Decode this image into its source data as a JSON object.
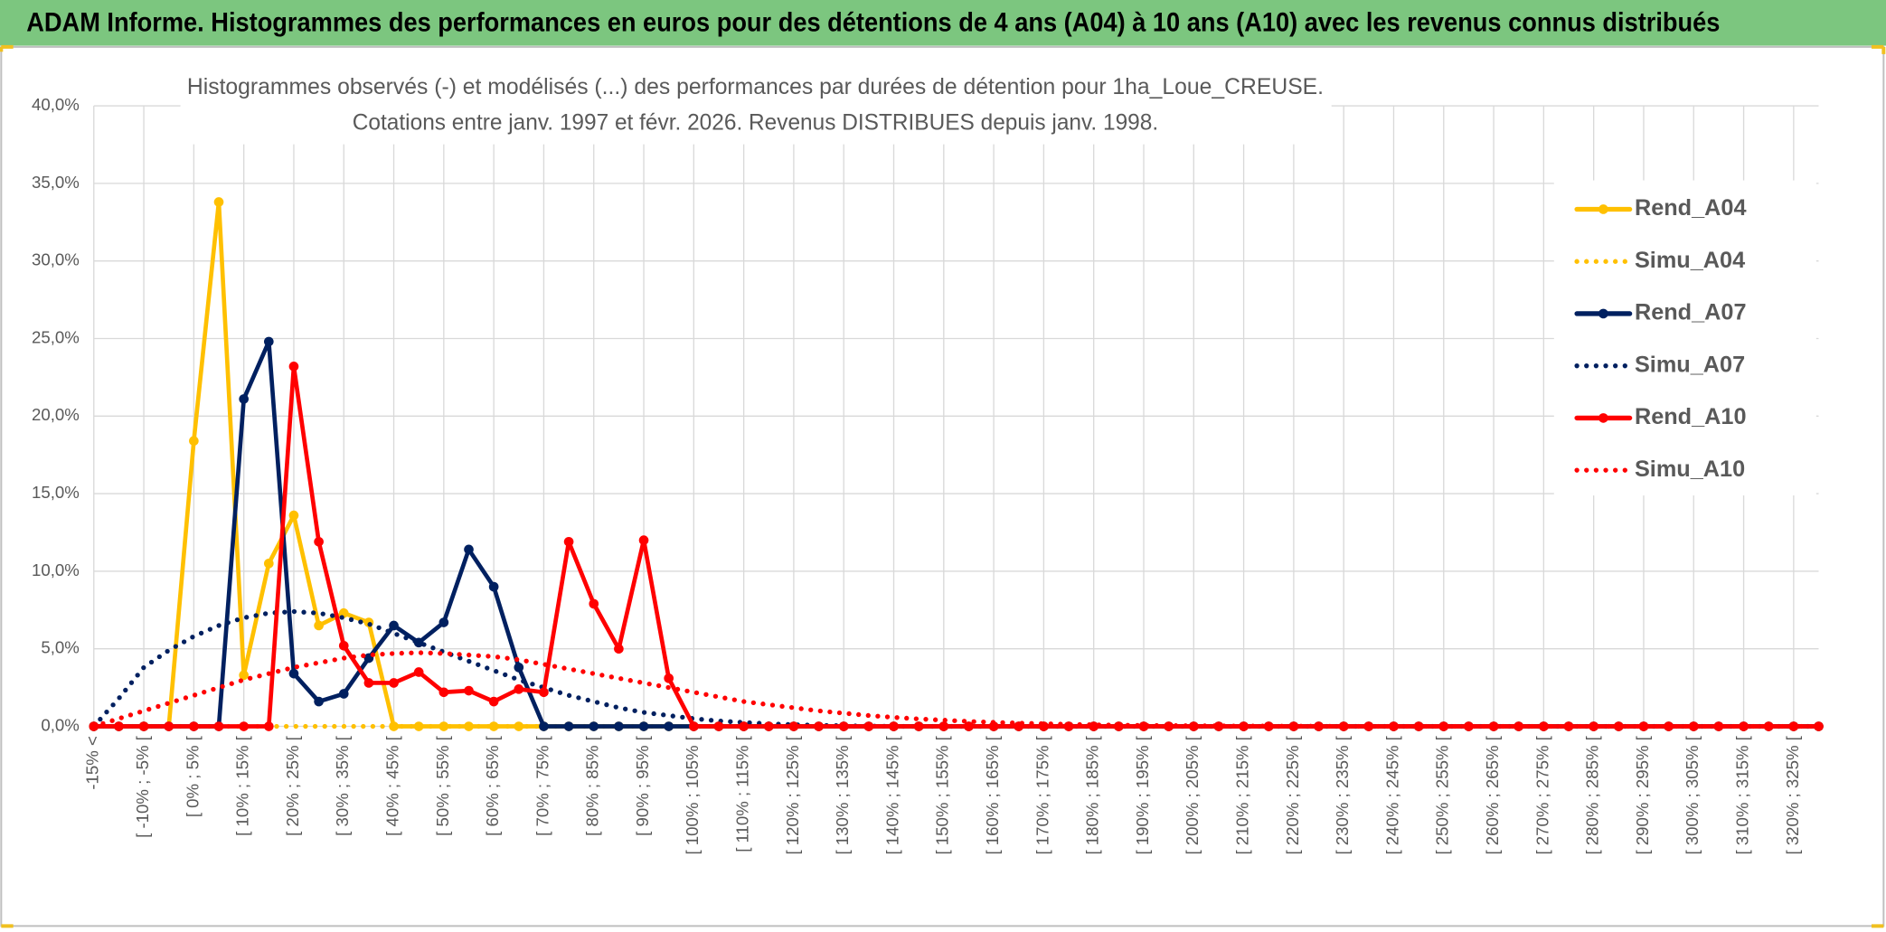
{
  "header": {
    "title": "ADAM Informe. Histogrammes des performances en euros pour des détentions de 4 ans (A04) à 10 ans (A10) avec les revenus connus distribués"
  },
  "chart_data": {
    "type": "line",
    "title": "Histogrammes observés (-) et modélisés (...) des performances par durées de détention pour 1ha_Loue_CREUSE.",
    "subtitle": "Cotations entre janv. 1997 et févr. 2026. Revenus DISTRIBUES depuis janv. 1998.",
    "categories": [
      "-15% <",
      null,
      "[ -10% ; -5% [",
      null,
      "[ 0% ; 5% [",
      null,
      "[ 10% ; 15% [",
      null,
      "[ 20% ; 25% [",
      null,
      "[ 30% ; 35% [",
      null,
      "[ 40% ; 45% [",
      null,
      "[ 50% ; 55% [",
      null,
      "[ 60% ; 65% [",
      null,
      "[ 70% ; 75% [",
      null,
      "[ 80% ; 85% [",
      null,
      "[ 90% ; 95% [",
      null,
      "[ 100% ; 105% [",
      null,
      "[ 110% ; 115% [",
      null,
      "[ 120% ; 125% [",
      null,
      "[ 130% ; 135% [",
      null,
      "[ 140% ; 145% [",
      null,
      "[ 150% ; 155% [",
      null,
      "[ 160% ; 165% [",
      null,
      "[ 170% ; 175% [",
      null,
      "[ 180% ; 185% [",
      null,
      "[ 190% ; 195% [",
      null,
      "[ 200% ; 205% [",
      null,
      "[ 210% ; 215% [",
      null,
      "[ 220% ; 225% [",
      null,
      "[ 230% ; 235% [",
      null,
      "[ 240% ; 245% [",
      null,
      "[ 250% ; 255% [",
      null,
      "[ 260% ; 265% [",
      null,
      "[ 270% ; 275% [",
      null,
      "[ 280% ; 285% [",
      null,
      "[ 290% ; 295% [",
      null,
      "[ 300% ; 305% [",
      null,
      "[ 310% ; 315% [",
      null,
      "[ 320% ; 325% [",
      null
    ],
    "ylim": [
      0,
      40
    ],
    "yticks": [
      {
        "value": 0,
        "label": "0,0%"
      },
      {
        "value": 5,
        "label": "5,0%"
      },
      {
        "value": 10,
        "label": "10,0%"
      },
      {
        "value": 15,
        "label": "15,0%"
      },
      {
        "value": 20,
        "label": "20,0%"
      },
      {
        "value": 25,
        "label": "25,0%"
      },
      {
        "value": 30,
        "label": "30,0%"
      },
      {
        "value": 35,
        "label": "35,0%"
      },
      {
        "value": 40,
        "label": "40,0%"
      }
    ],
    "grid": true,
    "legend": "right",
    "series": [
      {
        "name": "Rend_A04",
        "color": "#ffc000",
        "style": "solid",
        "markers": true,
        "values": [
          0,
          0,
          0,
          0,
          18.4,
          33.8,
          3.3,
          10.5,
          13.6,
          6.5,
          7.3,
          6.7,
          0,
          0,
          0,
          0,
          0,
          0,
          0,
          0,
          0,
          0,
          0,
          0,
          0,
          0,
          0,
          0,
          0,
          0,
          0,
          0,
          0,
          0,
          0,
          0,
          0,
          0,
          0,
          0,
          0,
          0,
          0,
          0,
          0,
          0,
          0,
          0,
          0,
          0,
          0,
          0,
          0,
          0,
          0,
          0,
          0,
          0,
          0,
          0,
          0,
          0,
          0,
          0,
          0,
          0,
          0,
          0,
          0,
          0
        ]
      },
      {
        "name": "Simu_A04",
        "color": "#ffc000",
        "style": "dotted",
        "markers": false,
        "values": [
          0,
          0,
          0,
          0,
          0,
          0,
          0,
          0,
          0,
          0,
          0,
          0,
          0,
          0,
          0,
          0,
          0,
          0,
          0,
          0,
          0,
          0,
          0,
          0,
          0,
          0,
          0,
          0,
          0,
          0,
          0,
          0,
          0,
          0,
          0,
          0,
          0,
          0,
          0,
          0,
          0,
          0,
          0,
          0,
          0,
          0,
          0,
          0,
          0,
          0,
          0,
          0,
          0,
          0,
          0,
          0,
          0,
          0,
          0,
          0,
          0,
          0,
          0,
          0,
          0,
          0,
          0,
          0,
          0,
          0
        ]
      },
      {
        "name": "Rend_A07",
        "color": "#002060",
        "style": "solid",
        "markers": true,
        "values": [
          0,
          0,
          0,
          0,
          0,
          0,
          21.1,
          24.8,
          3.4,
          1.6,
          2.1,
          4.4,
          6.5,
          5.4,
          6.7,
          11.4,
          9.0,
          3.8,
          0,
          0,
          0,
          0,
          0,
          0,
          0,
          0,
          0,
          0,
          0,
          0,
          0,
          0,
          0,
          0,
          0,
          0,
          0,
          0,
          0,
          0,
          0,
          0,
          0,
          0,
          0,
          0,
          0,
          0,
          0,
          0,
          0,
          0,
          0,
          0,
          0,
          0,
          0,
          0,
          0,
          0,
          0,
          0,
          0,
          0,
          0,
          0,
          0,
          0,
          0,
          0
        ]
      },
      {
        "name": "Simu_A07",
        "color": "#002060",
        "style": "dotted",
        "markers": false,
        "values": [
          0,
          1.8,
          3.8,
          4.9,
          5.8,
          6.5,
          7.0,
          7.3,
          7.4,
          7.3,
          7.0,
          6.6,
          6.0,
          5.4,
          4.8,
          4.2,
          3.6,
          3.0,
          2.5,
          2.0,
          1.6,
          1.2,
          0.9,
          0.7,
          0.5,
          0.35,
          0.25,
          0.17,
          0.11,
          0.07,
          0.04,
          0.02,
          0,
          0,
          0,
          0,
          0,
          0,
          0,
          0,
          0,
          0,
          0,
          0,
          0,
          0,
          0,
          0,
          0,
          0,
          0,
          0,
          0,
          0,
          0,
          0,
          0,
          0,
          0,
          0,
          0,
          0,
          0,
          0,
          0,
          0,
          0,
          0,
          0,
          0
        ]
      },
      {
        "name": "Rend_A10",
        "color": "#ff0000",
        "style": "solid",
        "markers": true,
        "values": [
          0,
          0,
          0,
          0,
          0,
          0,
          0,
          0,
          23.2,
          11.9,
          5.2,
          2.8,
          2.8,
          3.5,
          2.2,
          2.3,
          1.6,
          2.4,
          2.2,
          11.9,
          7.9,
          5.0,
          12.0,
          3.1,
          0,
          0,
          0,
          0,
          0,
          0,
          0,
          0,
          0,
          0,
          0,
          0,
          0,
          0,
          0,
          0,
          0,
          0,
          0,
          0,
          0,
          0,
          0,
          0,
          0,
          0,
          0,
          0,
          0,
          0,
          0,
          0,
          0,
          0,
          0,
          0,
          0,
          0,
          0,
          0,
          0,
          0,
          0,
          0,
          0,
          0
        ]
      },
      {
        "name": "Simu_A10",
        "color": "#ff0000",
        "style": "dotted",
        "markers": false,
        "values": [
          0,
          0.5,
          1.0,
          1.5,
          2.0,
          2.5,
          3.0,
          3.4,
          3.8,
          4.1,
          4.4,
          4.6,
          4.7,
          4.75,
          4.7,
          4.6,
          4.5,
          4.3,
          4.0,
          3.7,
          3.4,
          3.1,
          2.8,
          2.5,
          2.2,
          1.9,
          1.6,
          1.4,
          1.2,
          1.0,
          0.85,
          0.7,
          0.58,
          0.48,
          0.4,
          0.32,
          0.26,
          0.21,
          0.17,
          0.13,
          0.1,
          0.08,
          0.06,
          0.05,
          0.04,
          0.03,
          0.02,
          0.02,
          0.01,
          0.01,
          0,
          0,
          0,
          0,
          0,
          0,
          0,
          0,
          0,
          0,
          0,
          0,
          0,
          0,
          0,
          0,
          0,
          0,
          0,
          0
        ]
      }
    ]
  }
}
